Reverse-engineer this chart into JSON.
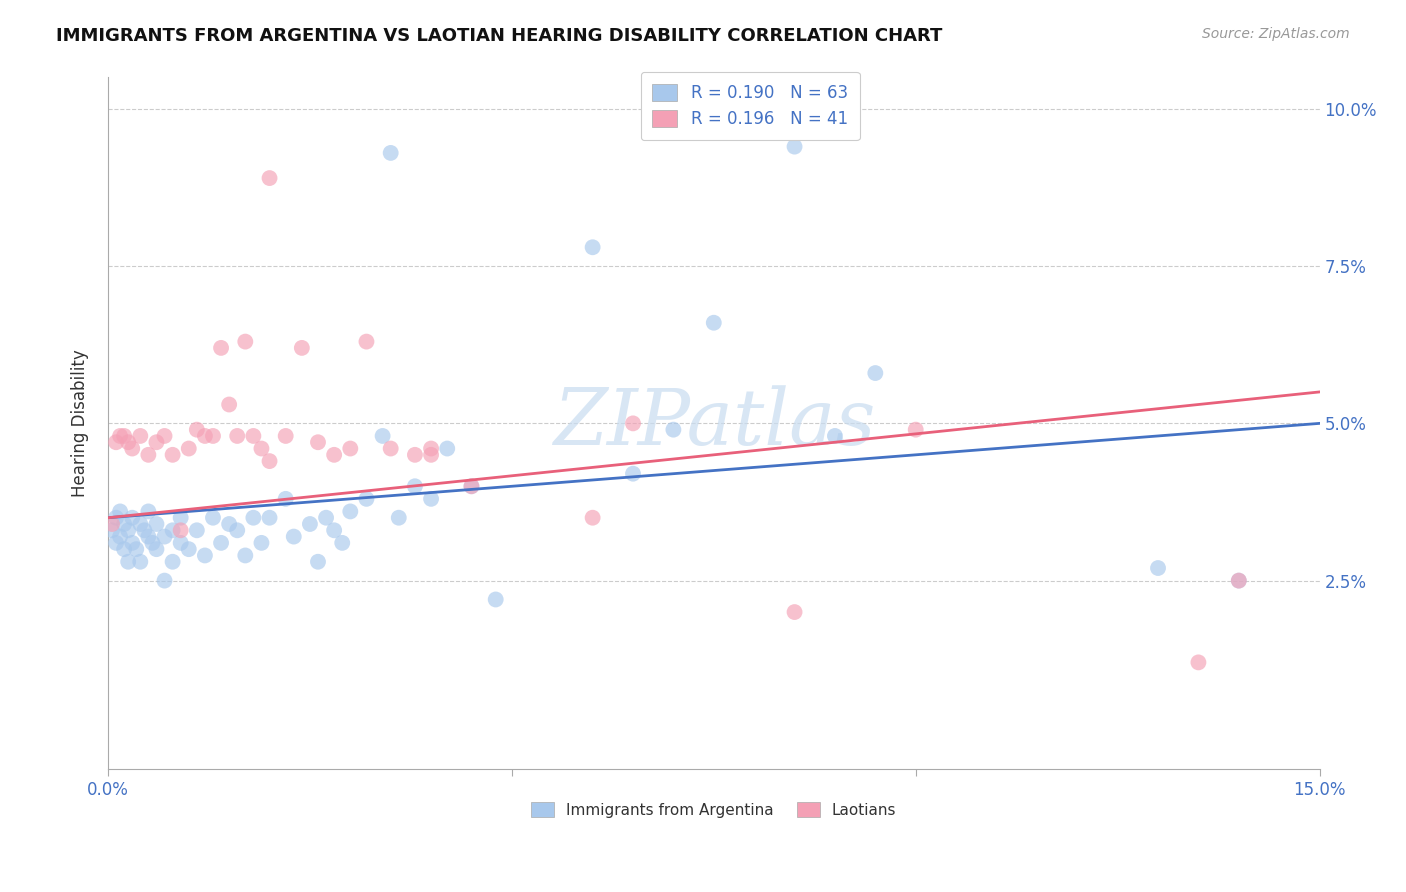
{
  "title": "IMMIGRANTS FROM ARGENTINA VS LAOTIAN HEARING DISABILITY CORRELATION CHART",
  "source": "Source: ZipAtlas.com",
  "xlim": [
    0.0,
    0.15
  ],
  "ylim": [
    -0.005,
    0.105
  ],
  "yticks": [
    0.025,
    0.05,
    0.075,
    0.1
  ],
  "ytick_labels": [
    "2.5%",
    "5.0%",
    "7.5%",
    "10.0%"
  ],
  "xtick_labels": [
    "0.0%",
    "15.0%"
  ],
  "legend_r1": "R = 0.190",
  "legend_n1": "N = 63",
  "legend_r2": "R = 0.196",
  "legend_n2": "N = 41",
  "watermark": "ZIPatlas",
  "color_blue": "#A8C8EC",
  "color_pink": "#F4A0B5",
  "line_blue": "#4472C4",
  "line_pink": "#E8607A",
  "arg_x": [
    0.0005,
    0.001,
    0.001,
    0.0015,
    0.0015,
    0.002,
    0.002,
    0.0025,
    0.0025,
    0.003,
    0.003,
    0.0035,
    0.004,
    0.004,
    0.0045,
    0.005,
    0.005,
    0.0055,
    0.006,
    0.006,
    0.007,
    0.007,
    0.008,
    0.008,
    0.009,
    0.009,
    0.01,
    0.011,
    0.012,
    0.013,
    0.014,
    0.015,
    0.016,
    0.017,
    0.018,
    0.019,
    0.02,
    0.022,
    0.023,
    0.025,
    0.026,
    0.027,
    0.028,
    0.029,
    0.03,
    0.032,
    0.034,
    0.036,
    0.038,
    0.04,
    0.042,
    0.045,
    0.048,
    0.035,
    0.06,
    0.065,
    0.07,
    0.075,
    0.085,
    0.09,
    0.095,
    0.13,
    0.14
  ],
  "arg_y": [
    0.033,
    0.031,
    0.035,
    0.032,
    0.036,
    0.03,
    0.034,
    0.033,
    0.028,
    0.031,
    0.035,
    0.03,
    0.034,
    0.028,
    0.033,
    0.032,
    0.036,
    0.031,
    0.03,
    0.034,
    0.032,
    0.025,
    0.033,
    0.028,
    0.031,
    0.035,
    0.03,
    0.033,
    0.029,
    0.035,
    0.031,
    0.034,
    0.033,
    0.029,
    0.035,
    0.031,
    0.035,
    0.038,
    0.032,
    0.034,
    0.028,
    0.035,
    0.033,
    0.031,
    0.036,
    0.038,
    0.048,
    0.035,
    0.04,
    0.038,
    0.046,
    0.04,
    0.022,
    0.093,
    0.078,
    0.042,
    0.049,
    0.066,
    0.094,
    0.048,
    0.058,
    0.027,
    0.025
  ],
  "lao_x": [
    0.0005,
    0.001,
    0.0015,
    0.002,
    0.0025,
    0.003,
    0.004,
    0.005,
    0.006,
    0.007,
    0.008,
    0.009,
    0.01,
    0.011,
    0.012,
    0.013,
    0.014,
    0.015,
    0.016,
    0.017,
    0.018,
    0.019,
    0.02,
    0.022,
    0.024,
    0.026,
    0.028,
    0.03,
    0.032,
    0.035,
    0.038,
    0.04,
    0.045,
    0.02,
    0.04,
    0.085,
    0.135,
    0.14,
    0.1,
    0.06,
    0.065
  ],
  "lao_y": [
    0.034,
    0.047,
    0.048,
    0.048,
    0.047,
    0.046,
    0.048,
    0.045,
    0.047,
    0.048,
    0.045,
    0.033,
    0.046,
    0.049,
    0.048,
    0.048,
    0.062,
    0.053,
    0.048,
    0.063,
    0.048,
    0.046,
    0.044,
    0.048,
    0.062,
    0.047,
    0.045,
    0.046,
    0.063,
    0.046,
    0.045,
    0.046,
    0.04,
    0.089,
    0.045,
    0.02,
    0.012,
    0.025,
    0.049,
    0.035,
    0.05
  ]
}
